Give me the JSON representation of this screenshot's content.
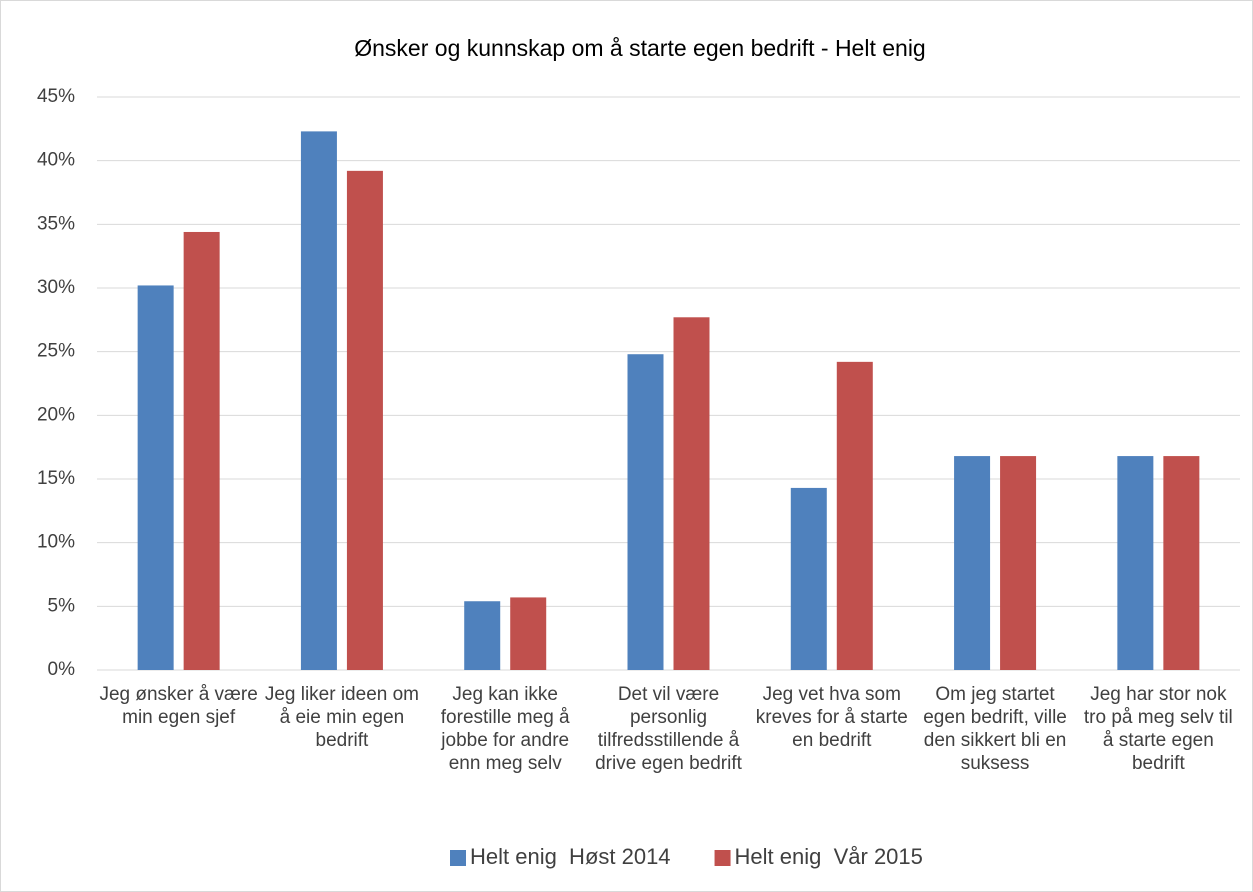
{
  "chart_data": {
    "type": "bar",
    "title": "Ønsker og kunnskap om å starte egen bedrift - Helt enig",
    "categories": [
      "Jeg ønsker å være min egen sjef",
      "Jeg liker ideen om å eie min egen bedrift",
      "Jeg kan ikke forestille meg å jobbe for andre enn meg selv",
      "Det vil være personlig tilfredsstillende å drive egen bedrift",
      "Jeg vet hva som kreves for å starte en bedrift",
      "Om jeg startet egen bedrift, ville den sikkert bli en suksess",
      "Jeg har stor nok tro på meg selv til å starte egen bedrift"
    ],
    "series": [
      {
        "name": "Helt enig  Høst 2014",
        "color": "#4f81bd",
        "values": [
          30.2,
          42.3,
          5.4,
          24.8,
          14.3,
          16.8,
          16.8
        ]
      },
      {
        "name": "Helt enig  Vår 2015",
        "color": "#c0504d",
        "values": [
          34.4,
          39.2,
          5.7,
          27.7,
          24.2,
          16.8,
          16.8
        ]
      }
    ],
    "ylim": [
      0,
      45
    ],
    "yticks": [
      {
        "value": 0,
        "label": "0%"
      },
      {
        "value": 5,
        "label": "5%"
      },
      {
        "value": 10,
        "label": "10%"
      },
      {
        "value": 15,
        "label": "15%"
      },
      {
        "value": 20,
        "label": "20%"
      },
      {
        "value": 25,
        "label": "25%"
      },
      {
        "value": 30,
        "label": "30%"
      },
      {
        "value": 35,
        "label": "35%"
      },
      {
        "value": 40,
        "label": "40%"
      },
      {
        "value": 45,
        "label": "45%"
      }
    ],
    "grid": true,
    "legend": "bottom"
  }
}
